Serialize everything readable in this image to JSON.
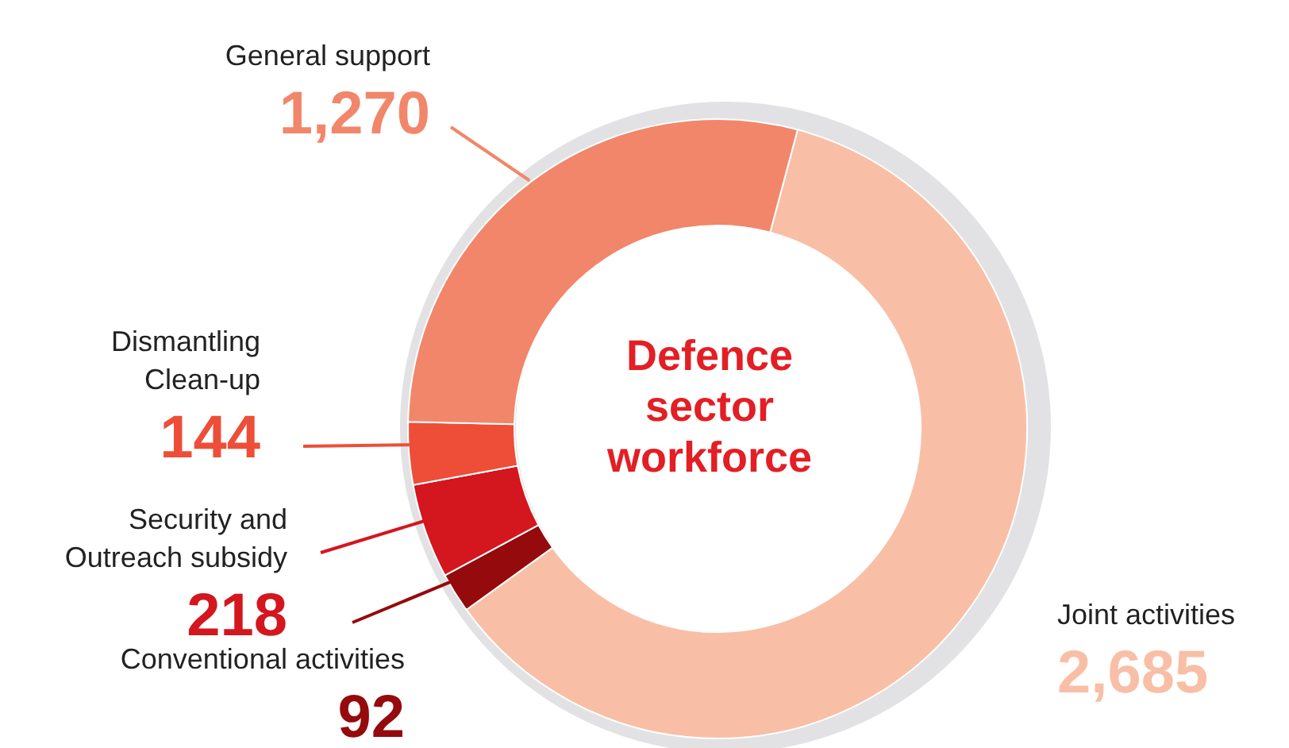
{
  "chart_data": {
    "type": "donut",
    "title": "Defence sector workforce",
    "categories": [
      "Joint activities",
      "Conventional activities",
      "Security and\nOutreach subsidy",
      "Dismantling\nClean-up",
      "General support"
    ],
    "values": [
      2685,
      92,
      218,
      144,
      1270
    ],
    "colors": [
      "#f8bfa6",
      "#950a0c",
      "#d4161e",
      "#ee4e37",
      "#f2866a"
    ],
    "value_labels": [
      "2,685",
      "92",
      "218",
      "144",
      "1,270"
    ]
  }
}
